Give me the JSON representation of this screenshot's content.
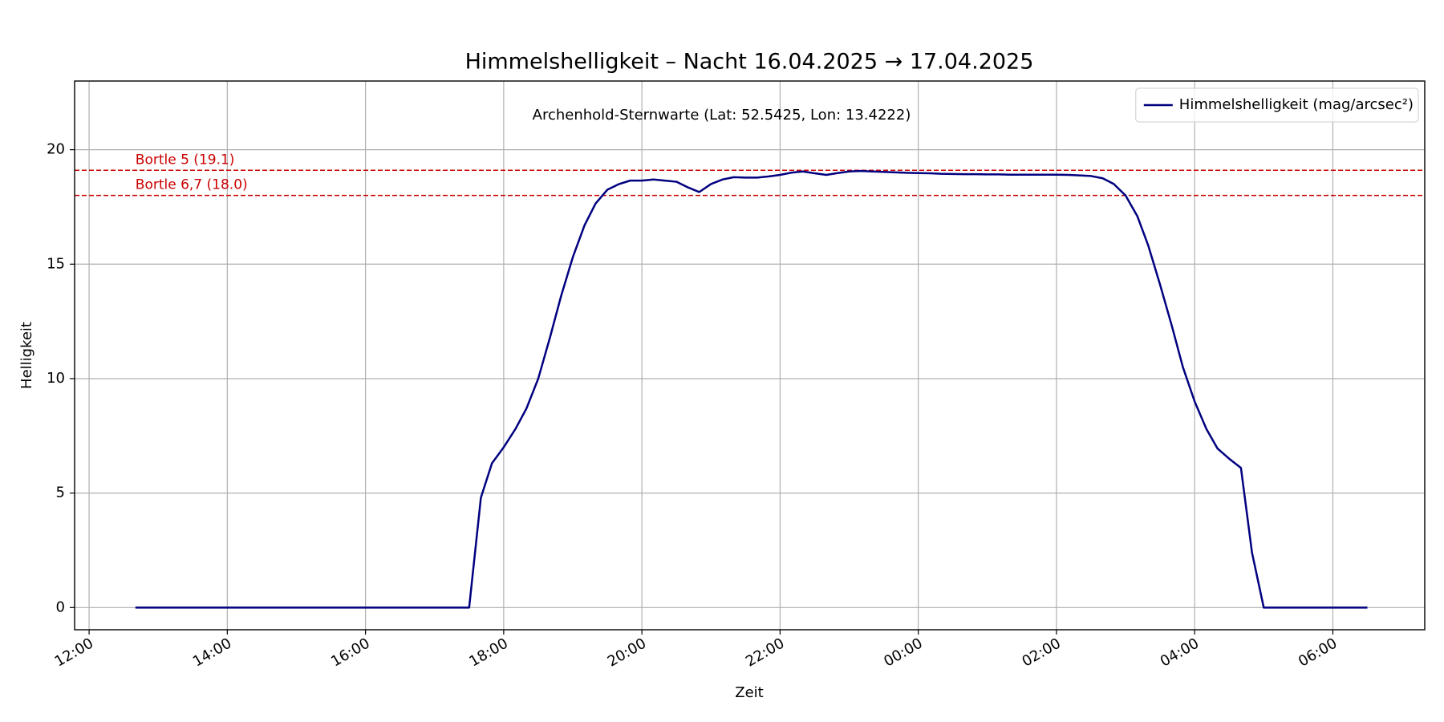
{
  "chart_data": {
    "type": "line",
    "title": "Himmelshelligkeit – Nacht 16.04.2025 → 17.04.2025",
    "annotation": "Archenhold-Sternwarte (Lat: 52.5425, Lon: 13.4222)",
    "x_label": "Zeit",
    "y_label": "Helligkeit",
    "x": [
      12.67,
      17.5,
      17.67,
      17.83,
      18.0,
      18.17,
      18.33,
      18.5,
      18.67,
      18.83,
      19.0,
      19.17,
      19.33,
      19.5,
      19.67,
      19.83,
      20.0,
      20.17,
      20.33,
      20.5,
      20.67,
      20.83,
      21.0,
      21.17,
      21.33,
      21.5,
      21.67,
      21.83,
      22.0,
      22.17,
      22.33,
      22.5,
      22.67,
      22.83,
      23.0,
      23.17,
      23.33,
      23.5,
      23.67,
      23.83,
      24.0,
      24.17,
      24.33,
      24.5,
      24.67,
      24.83,
      25.0,
      25.17,
      25.33,
      25.5,
      25.67,
      25.83,
      26.0,
      26.17,
      26.33,
      26.5,
      26.67,
      26.83,
      27.0,
      27.17,
      27.33,
      27.5,
      27.67,
      27.83,
      28.0,
      28.17,
      28.33,
      28.5,
      28.67,
      28.83,
      29.0,
      30.5
    ],
    "series": [
      {
        "name": "Himmelshelligkeit (mag/arcsec²)",
        "color": "#000080",
        "values": [
          0,
          0,
          4.8,
          6.3,
          7.0,
          7.8,
          8.7,
          10.0,
          11.8,
          13.6,
          15.3,
          16.7,
          17.65,
          18.25,
          18.5,
          18.65,
          18.65,
          18.7,
          18.65,
          18.6,
          18.35,
          18.15,
          18.5,
          18.7,
          18.8,
          18.78,
          18.78,
          18.83,
          18.9,
          19.0,
          19.05,
          18.97,
          18.9,
          18.98,
          19.05,
          19.07,
          19.05,
          19.03,
          19.01,
          18.99,
          18.98,
          18.97,
          18.95,
          18.94,
          18.93,
          18.93,
          18.92,
          18.92,
          18.91,
          18.91,
          18.91,
          18.91,
          18.91,
          18.9,
          18.88,
          18.85,
          18.75,
          18.5,
          18.0,
          17.1,
          15.8,
          14.1,
          12.3,
          10.5,
          9.0,
          7.8,
          6.95,
          6.5,
          6.1,
          2.4,
          0,
          0
        ]
      }
    ],
    "reference_lines": [
      {
        "value": 19.1,
        "label": "Bortle 5 (19.1)",
        "color": "#cc0000"
      },
      {
        "value": 18.0,
        "label": "Bortle 6,7 (18.0)",
        "color": "#cc0000"
      }
    ],
    "xlim": [
      11.79,
      31.33
    ],
    "ylim": [
      -0.97,
      23.0
    ],
    "xticks": [
      {
        "value": 12,
        "label": "12:00"
      },
      {
        "value": 14,
        "label": "14:00"
      },
      {
        "value": 16,
        "label": "16:00"
      },
      {
        "value": 18,
        "label": "18:00"
      },
      {
        "value": 20,
        "label": "20:00"
      },
      {
        "value": 22,
        "label": "22:00"
      },
      {
        "value": 24,
        "label": "00:00"
      },
      {
        "value": 26,
        "label": "02:00"
      },
      {
        "value": 28,
        "label": "04:00"
      },
      {
        "value": 30,
        "label": "06:00"
      }
    ],
    "yticks": [
      0,
      5,
      10,
      15,
      20
    ],
    "grid": true,
    "legend": "upper right"
  }
}
